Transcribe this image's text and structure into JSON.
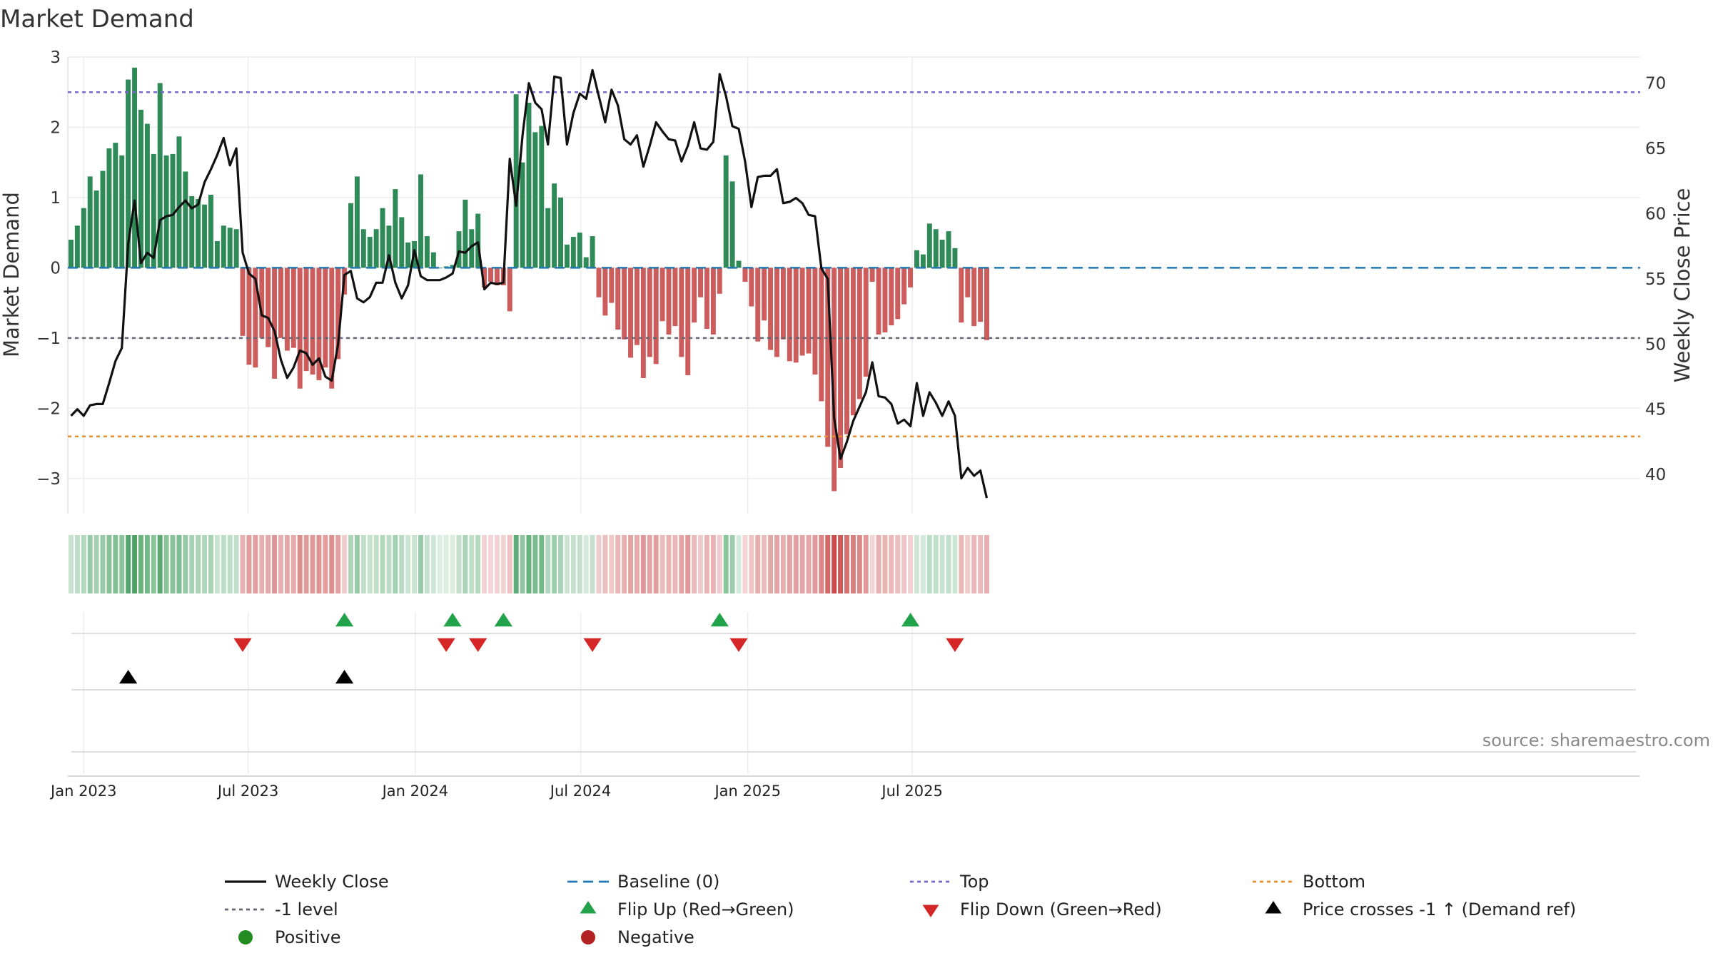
{
  "chart_data": {
    "type": "bar",
    "title": "Market Demand",
    "ylabel": "Market Demand",
    "y2label": "Weekly Close Price",
    "ylim": [
      -3.5,
      3.0
    ],
    "y2lim": [
      37,
      72
    ],
    "yticks": [
      3,
      2,
      1,
      0,
      -1,
      -2,
      -3
    ],
    "y2ticks": [
      70,
      65,
      60,
      55,
      50,
      45,
      40
    ],
    "start_date": "2022-12-18",
    "xticks": [
      {
        "date": "2023-01-01",
        "label": "Jan 2023"
      },
      {
        "date": "2023-07-01",
        "label": "Jul 2023"
      },
      {
        "date": "2024-01-01",
        "label": "Jan 2024"
      },
      {
        "date": "2024-07-01",
        "label": "Jul 2024"
      },
      {
        "date": "2025-01-01",
        "label": "Jan 2025"
      },
      {
        "date": "2025-07-01",
        "label": "Jul 2025"
      }
    ],
    "demand": [
      0.4,
      0.6,
      0.85,
      1.3,
      1.1,
      1.38,
      1.7,
      1.78,
      1.6,
      2.68,
      2.85,
      2.25,
      2.05,
      1.62,
      2.63,
      1.6,
      1.62,
      1.87,
      1.37,
      1.02,
      0.98,
      0.9,
      1.04,
      0.38,
      0.6,
      0.57,
      0.55,
      -0.97,
      -1.38,
      -1.42,
      -1.0,
      -1.13,
      -1.58,
      -1.0,
      -1.18,
      -1.14,
      -1.72,
      -1.47,
      -1.52,
      -1.6,
      -1.42,
      -1.72,
      -1.3,
      -0.38,
      0.92,
      1.3,
      0.55,
      0.44,
      0.55,
      0.85,
      0.6,
      1.12,
      0.72,
      0.36,
      0.38,
      1.33,
      0.45,
      0.22,
      0.0,
      0.02,
      0.04,
      0.52,
      0.97,
      0.55,
      0.77,
      -0.28,
      -0.2,
      -0.25,
      -0.25,
      -0.62,
      2.47,
      1.5,
      2.35,
      1.93,
      2.02,
      0.85,
      1.2,
      1.0,
      0.33,
      0.44,
      0.5,
      0.15,
      0.45,
      -0.42,
      -0.68,
      -0.5,
      -0.88,
      -1.02,
      -1.28,
      -1.1,
      -1.57,
      -1.27,
      -1.37,
      -0.76,
      -0.95,
      -0.83,
      -1.27,
      -1.53,
      -0.78,
      -0.42,
      -0.87,
      -0.95,
      -0.37,
      1.6,
      1.23,
      0.1,
      -0.2,
      -0.55,
      -1.05,
      -0.75,
      -1.17,
      -1.27,
      -1.02,
      -1.33,
      -1.35,
      -1.25,
      -1.22,
      -1.52,
      -1.9,
      -2.55,
      -3.18,
      -2.85,
      -2.37,
      -2.1,
      -1.87,
      -1.55,
      -0.2,
      -0.95,
      -0.92,
      -0.82,
      -0.73,
      -0.52,
      -0.28,
      0.25,
      0.19,
      0.63,
      0.55,
      0.4,
      0.52,
      0.28,
      -0.78,
      -0.42,
      -0.83,
      -0.77,
      -1.03
    ],
    "weekly_close": [
      44.5,
      45.0,
      44.5,
      45.3,
      45.4,
      45.4,
      47.0,
      48.7,
      49.7,
      57.7,
      61.0,
      56.2,
      57.0,
      56.6,
      59.5,
      59.8,
      59.9,
      60.5,
      61.0,
      60.4,
      60.7,
      62.4,
      63.4,
      64.5,
      65.8,
      63.7,
      65.0,
      57.0,
      55.4,
      55.0,
      52.2,
      52.0,
      51.0,
      48.8,
      47.4,
      48.2,
      49.5,
      49.3,
      48.4,
      48.9,
      47.5,
      47.2,
      50.0,
      55.3,
      55.6,
      53.5,
      53.2,
      53.6,
      54.7,
      54.7,
      56.8,
      54.7,
      53.5,
      54.5,
      57.2,
      55.2,
      54.9,
      54.9,
      54.9,
      55.1,
      55.4,
      57.1,
      57.0,
      57.5,
      57.8,
      54.2,
      54.7,
      54.6,
      54.7,
      64.2,
      60.6,
      66.0,
      70.0,
      68.5,
      68.0,
      65.3,
      70.5,
      70.4,
      65.3,
      67.7,
      69.2,
      68.8,
      71.0,
      69.0,
      67.0,
      69.5,
      68.3,
      65.7,
      65.3,
      66.0,
      63.6,
      65.2,
      67.0,
      66.3,
      65.7,
      65.6,
      64.0,
      65.2,
      67.0,
      65.0,
      64.9,
      65.5,
      70.7,
      69.0,
      66.7,
      66.5,
      64.0,
      60.5,
      62.8,
      62.9,
      62.9,
      63.4,
      60.8,
      60.9,
      61.2,
      60.8,
      59.9,
      59.8,
      55.8,
      55.0,
      44.3,
      41.2,
      42.5,
      44.1,
      45.2,
      46.3,
      48.6,
      46.0,
      45.9,
      45.4,
      43.9,
      44.2,
      43.7,
      47.0,
      44.5,
      46.3,
      45.5,
      44.5,
      45.6,
      44.5,
      39.7,
      40.5,
      39.9,
      40.3,
      38.2
    ],
    "top_level": 2.5,
    "bottom_level": -2.4,
    "ref_level": -1,
    "baseline": 0,
    "flip_up_weeks": [
      43,
      60,
      68,
      102,
      132
    ],
    "flip_down_weeks": [
      27,
      59,
      64,
      82,
      105,
      139
    ],
    "price_cross_weeks": [
      9,
      43
    ],
    "source": "source: sharemaestro.com",
    "legend": [
      {
        "key": "weekly_close",
        "label": "Weekly Close"
      },
      {
        "key": "baseline",
        "label": "Baseline (0)"
      },
      {
        "key": "top",
        "label": "Top"
      },
      {
        "key": "bottom",
        "label": "Bottom"
      },
      {
        "key": "ref_level",
        "label": "-1 level"
      },
      {
        "key": "flip_up",
        "label": "Flip Up (Red→Green)"
      },
      {
        "key": "flip_down",
        "label": "Flip Down (Green→Red)"
      },
      {
        "key": "price_cross",
        "label": "Price crosses -1 ↑ (Demand ref)"
      },
      {
        "key": "positive",
        "label": "Positive"
      },
      {
        "key": "negative",
        "label": "Negative"
      }
    ],
    "colors": {
      "positive": "#2e8b57",
      "negative": "#cd5c5c",
      "line": "#111111",
      "baseline": "#1f77b4",
      "top": "#7b68cc",
      "ref": "#666677",
      "bottom": "#e6912e",
      "flip_up": "#22a24a",
      "flip_down": "#d62728",
      "cross": "#000000",
      "positive_dot": "#228b22",
      "negative_dot": "#b22222"
    }
  }
}
